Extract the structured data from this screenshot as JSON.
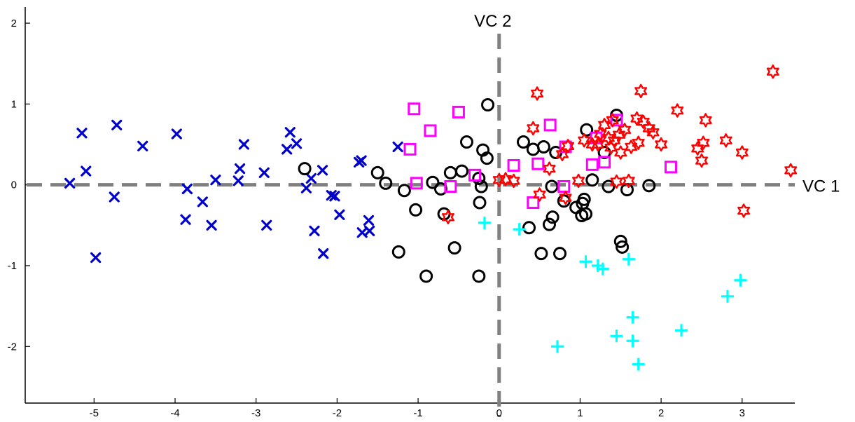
{
  "chart_data": {
    "type": "scatter",
    "title": "",
    "xlabel": "",
    "ylabel": "",
    "xlim": [
      -5.85,
      3.65
    ],
    "ylim": [
      -2.7,
      2.2
    ],
    "grid": false,
    "legend": "none",
    "xticks": [
      -5,
      -4,
      -3,
      -2,
      -1,
      0,
      1,
      2,
      3
    ],
    "yticks": [
      -2,
      -1,
      0,
      1,
      2
    ],
    "reference_lines": [
      {
        "orientation": "horizontal",
        "value": 0,
        "label": "VC 1",
        "color": "#808080",
        "style": "dashed"
      },
      {
        "orientation": "vertical",
        "value": 0,
        "label": "VC 2",
        "color": "#808080",
        "style": "dashed"
      }
    ],
    "series": [
      {
        "marker": "x",
        "color": "#0000cc",
        "points": [
          [
            -5.3,
            0.02
          ],
          [
            -5.15,
            0.64
          ],
          [
            -5.1,
            0.17
          ],
          [
            -4.98,
            -0.9
          ],
          [
            -4.75,
            -0.15
          ],
          [
            -4.72,
            0.74
          ],
          [
            -4.4,
            0.48
          ],
          [
            -3.98,
            0.63
          ],
          [
            -3.85,
            -0.05
          ],
          [
            -3.87,
            -0.43
          ],
          [
            -3.66,
            -0.21
          ],
          [
            -3.55,
            -0.5
          ],
          [
            -3.5,
            0.06
          ],
          [
            -3.22,
            0.05
          ],
          [
            -3.2,
            0.2
          ],
          [
            -3.15,
            0.5
          ],
          [
            -2.9,
            0.15
          ],
          [
            -2.87,
            -0.5
          ],
          [
            -2.62,
            0.44
          ],
          [
            -2.58,
            0.65
          ],
          [
            -2.5,
            0.51
          ],
          [
            -2.38,
            -0.04
          ],
          [
            -2.32,
            0.08
          ],
          [
            -2.28,
            -0.57
          ],
          [
            -2.18,
            0.18
          ],
          [
            -2.17,
            -0.85
          ],
          [
            -2.07,
            -0.13
          ],
          [
            -2.03,
            -0.14
          ],
          [
            -1.97,
            -0.37
          ],
          [
            -1.73,
            0.28
          ],
          [
            -1.7,
            0.3
          ],
          [
            -1.69,
            -0.59
          ],
          [
            -1.61,
            -0.44
          ],
          [
            -1.6,
            -0.57
          ],
          [
            -1.25,
            0.47
          ]
        ]
      },
      {
        "marker": "o",
        "color": "#000000",
        "points": [
          [
            -2.4,
            0.2
          ],
          [
            -1.5,
            0.15
          ],
          [
            -1.4,
            0.02
          ],
          [
            -1.24,
            -0.83
          ],
          [
            -1.17,
            -0.07
          ],
          [
            -1.03,
            -0.31
          ],
          [
            -0.9,
            -1.13
          ],
          [
            -0.82,
            0.03
          ],
          [
            -0.72,
            -0.05
          ],
          [
            -0.68,
            -0.36
          ],
          [
            -0.6,
            0.15
          ],
          [
            -0.55,
            -0.78
          ],
          [
            -0.46,
            0.17
          ],
          [
            -0.4,
            0.53
          ],
          [
            -0.25,
            -1.13
          ],
          [
            -0.24,
            -0.22
          ],
          [
            -0.22,
            -0.02
          ],
          [
            -0.2,
            0.43
          ],
          [
            -0.15,
            0.33
          ],
          [
            -0.14,
            0.99
          ],
          [
            -0.25,
            0.08
          ],
          [
            0.3,
            0.53
          ],
          [
            0.37,
            -0.53
          ],
          [
            0.42,
            0.44
          ],
          [
            0.52,
            -0.85
          ],
          [
            0.55,
            0.47
          ],
          [
            0.62,
            -0.49
          ],
          [
            0.65,
            -0.02
          ],
          [
            0.66,
            -0.4
          ],
          [
            0.7,
            0.4
          ],
          [
            0.75,
            -0.85
          ],
          [
            0.8,
            -0.2
          ],
          [
            0.95,
            -0.28
          ],
          [
            1.02,
            -0.38
          ],
          [
            1.03,
            -0.23
          ],
          [
            1.05,
            -0.18
          ],
          [
            1.07,
            -0.36
          ],
          [
            1.08,
            0.68
          ],
          [
            1.15,
            0.06
          ],
          [
            1.3,
            0.4
          ],
          [
            1.35,
            -0.02
          ],
          [
            1.45,
            0.86
          ],
          [
            1.5,
            -0.7
          ],
          [
            1.52,
            -0.77
          ],
          [
            1.58,
            -0.06
          ],
          [
            1.85,
            -0.01
          ]
        ]
      },
      {
        "marker": "square",
        "color": "#ff00ff",
        "points": [
          [
            -1.1,
            0.44
          ],
          [
            -1.05,
            0.94
          ],
          [
            -1.02,
            0.02
          ],
          [
            -0.85,
            0.67
          ],
          [
            -0.6,
            -0.02
          ],
          [
            -0.5,
            0.9
          ],
          [
            -0.3,
            0.12
          ],
          [
            0.18,
            0.24
          ],
          [
            0.42,
            -0.22
          ],
          [
            0.48,
            0.26
          ],
          [
            0.63,
            0.74
          ],
          [
            0.8,
            -0.02
          ],
          [
            0.82,
            0.47
          ],
          [
            1.15,
            0.25
          ],
          [
            1.2,
            0.58
          ],
          [
            1.3,
            0.28
          ],
          [
            1.45,
            0.8
          ],
          [
            2.12,
            0.22
          ]
        ]
      },
      {
        "marker": "hexagram",
        "color": "#ff0000",
        "points": [
          [
            -0.63,
            -0.4
          ],
          [
            0.0,
            0.06
          ],
          [
            0.08,
            0.07
          ],
          [
            0.18,
            0.05
          ],
          [
            0.42,
            0.7
          ],
          [
            0.47,
            1.13
          ],
          [
            0.5,
            -0.12
          ],
          [
            0.62,
            0.2
          ],
          [
            0.78,
            0.38
          ],
          [
            0.82,
            -0.16
          ],
          [
            0.85,
            0.48
          ],
          [
            0.98,
            0.05
          ],
          [
            1.05,
            0.55
          ],
          [
            1.15,
            0.5
          ],
          [
            1.22,
            0.5
          ],
          [
            1.25,
            0.63
          ],
          [
            1.3,
            0.74
          ],
          [
            1.35,
            0.58
          ],
          [
            1.38,
            0.46
          ],
          [
            1.4,
            0.8
          ],
          [
            1.42,
            0.55
          ],
          [
            1.45,
            0.04
          ],
          [
            1.48,
            0.62
          ],
          [
            1.5,
            0.4
          ],
          [
            1.55,
            0.68
          ],
          [
            1.6,
            0.05
          ],
          [
            1.63,
            0.47
          ],
          [
            1.7,
            0.82
          ],
          [
            1.72,
            0.52
          ],
          [
            1.75,
            1.16
          ],
          [
            1.78,
            0.78
          ],
          [
            1.85,
            0.7
          ],
          [
            1.9,
            0.65
          ],
          [
            2.0,
            0.5
          ],
          [
            2.2,
            0.92
          ],
          [
            2.45,
            0.45
          ],
          [
            2.5,
            0.3
          ],
          [
            2.52,
            0.52
          ],
          [
            2.55,
            0.8
          ],
          [
            2.8,
            0.55
          ],
          [
            3.0,
            0.4
          ],
          [
            3.02,
            -0.32
          ],
          [
            3.38,
            1.4
          ],
          [
            3.6,
            0.18
          ]
        ]
      },
      {
        "marker": "+",
        "color": "#00ffff",
        "points": [
          [
            -0.18,
            -0.47
          ],
          [
            0.25,
            -0.55
          ],
          [
            0.72,
            -2.0
          ],
          [
            1.07,
            -0.95
          ],
          [
            1.22,
            -1.0
          ],
          [
            1.28,
            -1.04
          ],
          [
            1.45,
            -1.87
          ],
          [
            1.6,
            -0.92
          ],
          [
            1.65,
            -1.64
          ],
          [
            1.65,
            -1.93
          ],
          [
            1.72,
            -2.22
          ],
          [
            2.25,
            -1.8
          ],
          [
            2.82,
            -1.38
          ],
          [
            2.98,
            -1.18
          ]
        ]
      }
    ]
  }
}
